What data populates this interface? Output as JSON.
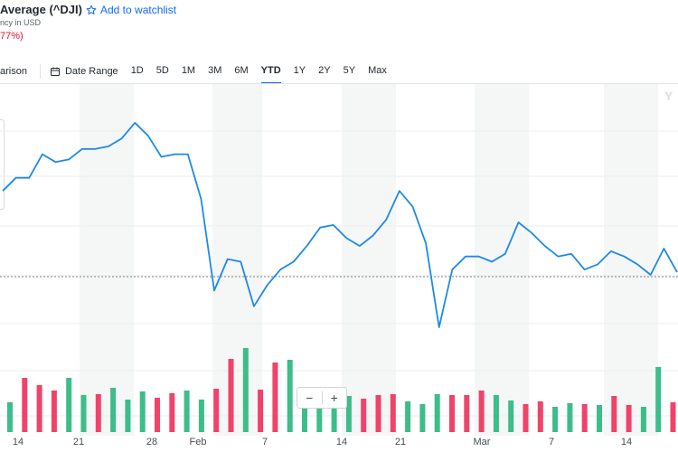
{
  "header": {
    "title": "Average (^DJI)",
    "watchlist_label": "Add to watchlist",
    "subtitle": "ncy in USD",
    "change": "77%)"
  },
  "toolbar": {
    "comparison": "arison",
    "date_range": "Date Range",
    "ranges": [
      "1D",
      "5D",
      "1M",
      "3M",
      "6M",
      "YTD",
      "1Y",
      "2Y",
      "5Y",
      "Max"
    ],
    "active_range": "YTD"
  },
  "chart_data": {
    "type": "line",
    "ylabel": "",
    "xlabel": "",
    "x_tick_labels": [
      "14",
      "21",
      "28",
      "Feb",
      "7",
      "14",
      "21",
      "Mar",
      "7",
      "14"
    ],
    "price_series": [
      0.72,
      0.77,
      0.77,
      0.86,
      0.83,
      0.84,
      0.88,
      0.88,
      0.89,
      0.92,
      0.98,
      0.93,
      0.85,
      0.86,
      0.86,
      0.69,
      0.34,
      0.46,
      0.45,
      0.28,
      0.36,
      0.42,
      0.45,
      0.51,
      0.58,
      0.59,
      0.54,
      0.51,
      0.55,
      0.61,
      0.72,
      0.66,
      0.52,
      0.2,
      0.42,
      0.47,
      0.47,
      0.45,
      0.48,
      0.6,
      0.56,
      0.51,
      0.47,
      0.48,
      0.42,
      0.44,
      0.49,
      0.47,
      0.44,
      0.4,
      0.5,
      0.41
    ],
    "volume_series": [
      {
        "v": 0.33,
        "up": true
      },
      {
        "v": 0.6,
        "up": false
      },
      {
        "v": 0.52,
        "up": false
      },
      {
        "v": 0.46,
        "up": false
      },
      {
        "v": 0.6,
        "up": true
      },
      {
        "v": 0.41,
        "up": true
      },
      {
        "v": 0.42,
        "up": false
      },
      {
        "v": 0.49,
        "up": true
      },
      {
        "v": 0.36,
        "up": true
      },
      {
        "v": 0.45,
        "up": true
      },
      {
        "v": 0.38,
        "up": false
      },
      {
        "v": 0.43,
        "up": false
      },
      {
        "v": 0.46,
        "up": true
      },
      {
        "v": 0.36,
        "up": true
      },
      {
        "v": 0.48,
        "up": false
      },
      {
        "v": 0.81,
        "up": false
      },
      {
        "v": 0.93,
        "up": true
      },
      {
        "v": 0.47,
        "up": false
      },
      {
        "v": 0.77,
        "up": false
      },
      {
        "v": 0.8,
        "up": true
      },
      {
        "v": 0.46,
        "up": true
      },
      {
        "v": 0.4,
        "up": true
      },
      {
        "v": 0.39,
        "up": true
      },
      {
        "v": 0.4,
        "up": true
      },
      {
        "v": 0.37,
        "up": false
      },
      {
        "v": 0.41,
        "up": false
      },
      {
        "v": 0.42,
        "up": false
      },
      {
        "v": 0.34,
        "up": true
      },
      {
        "v": 0.31,
        "up": true
      },
      {
        "v": 0.42,
        "up": true
      },
      {
        "v": 0.41,
        "up": false
      },
      {
        "v": 0.41,
        "up": false
      },
      {
        "v": 0.46,
        "up": false
      },
      {
        "v": 0.41,
        "up": true
      },
      {
        "v": 0.35,
        "up": true
      },
      {
        "v": 0.31,
        "up": false
      },
      {
        "v": 0.34,
        "up": false
      },
      {
        "v": 0.28,
        "up": true
      },
      {
        "v": 0.32,
        "up": true
      },
      {
        "v": 0.31,
        "up": false
      },
      {
        "v": 0.3,
        "up": true
      },
      {
        "v": 0.4,
        "up": false
      },
      {
        "v": 0.3,
        "up": false
      },
      {
        "v": 0.28,
        "up": true
      },
      {
        "v": 0.72,
        "up": true
      },
      {
        "v": 0.33,
        "up": false
      }
    ],
    "colors": {
      "line": "#1e8ae6",
      "up": "#3cbd8a",
      "down": "#f0436a",
      "band": "#f5f6f6"
    }
  },
  "zoom": {
    "minus": "−",
    "plus": "+"
  }
}
